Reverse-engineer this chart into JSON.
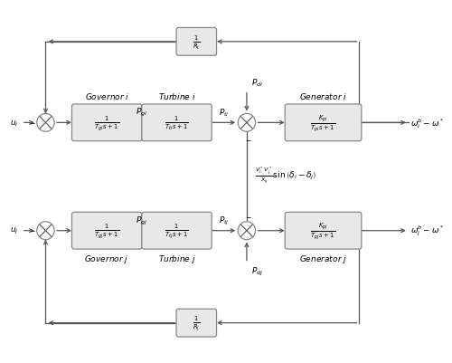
{
  "bg_color": "#ffffff",
  "box_face_color": "#e8e8e8",
  "box_edge_color": "#888888",
  "line_color": "#555555",
  "text_color": "#000000",
  "fig_width": 5.0,
  "fig_height": 4.02,
  "top_area_i": {
    "governor_label": "Governor $i$",
    "turbine_label": "Turbine $i$",
    "generator_label": "Generator $i$",
    "governor_tf": "$\\frac{1}{T_{gi}\\,s+1}$",
    "turbine_tf": "$\\frac{1}{T_{ti}\\,s+1}$",
    "generator_tf": "$\\frac{K_{pi}}{T_{pi}\\,s+1}$",
    "input_label": "$u_i$",
    "output_label": "$\\omega_i^b - \\omega^*$",
    "Pgi_label": "$P_{gi}$",
    "Pti_label": "$P_{ti}$",
    "Pdi_label": "$P_{di}$",
    "feedback_tf": "$\\frac{1}{R_i}$"
  },
  "bottom_area_j": {
    "governor_label": "Governor $j$",
    "turbine_label": "Turbine $j$",
    "generator_label": "Generator $j$",
    "governor_tf": "$\\frac{1}{T_{gj}\\,s+1}$",
    "turbine_tf": "$\\frac{1}{T_{tj}\\,s+1}$",
    "generator_tf": "$\\frac{K_{pj}}{T_{pj}\\,s+1}$",
    "input_label": "$u_j$",
    "output_label": "$\\omega_j^b - \\omega^*$",
    "Pgj_label": "$P_{gj}$",
    "Ptj_label": "$P_{tj}$",
    "Pdj_label": "$P_{dj}$",
    "feedback_tf": "$\\frac{1}{R_j}$"
  },
  "interconnect_label": "$\\frac{V_i^*\\,V_j^*}{X_{ij}}\\sin\\left(\\delta_i - \\delta_j\\right)$"
}
